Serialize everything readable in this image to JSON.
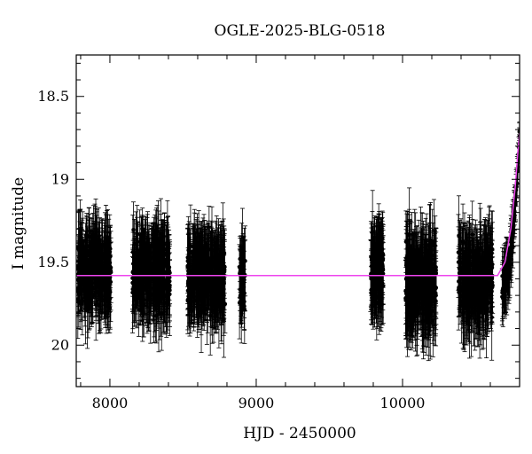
{
  "chart_data": {
    "type": "scatter",
    "title": "OGLE-2025-BLG-0518",
    "xlabel": "HJD - 2450000",
    "ylabel": "I magnitude",
    "xlim": [
      7770,
      10800
    ],
    "ylim": [
      20.25,
      18.25
    ],
    "y_inverted": true,
    "x_ticks": [
      8000,
      9000,
      10000
    ],
    "y_ticks": [
      18.5,
      19,
      19.5,
      20
    ],
    "grid": false,
    "legend": "none",
    "series": [
      {
        "kind": "photometry",
        "color": "#000000",
        "baseline_mag": 19.58,
        "seasons": [
          {
            "start": 7780,
            "end": 8010,
            "mean": 19.55,
            "scatter": 0.24,
            "err": 0.19,
            "count": 330
          },
          {
            "start": 8150,
            "end": 8410,
            "mean": 19.56,
            "scatter": 0.25,
            "err": 0.2,
            "count": 330
          },
          {
            "start": 8530,
            "end": 8790,
            "mean": 19.58,
            "scatter": 0.25,
            "err": 0.2,
            "count": 330
          },
          {
            "start": 8885,
            "end": 8925,
            "mean": 19.6,
            "scatter": 0.22,
            "err": 0.18,
            "count": 45
          },
          {
            "start": 9780,
            "end": 9870,
            "mean": 19.55,
            "scatter": 0.22,
            "err": 0.2,
            "count": 130
          },
          {
            "start": 10020,
            "end": 10230,
            "mean": 19.62,
            "scatter": 0.26,
            "err": 0.22,
            "count": 300
          },
          {
            "start": 10380,
            "end": 10620,
            "mean": 19.6,
            "scatter": 0.25,
            "err": 0.21,
            "count": 300
          }
        ],
        "rise": {
          "start": 10680,
          "end": 10800,
          "mag_start": 19.65,
          "mag_end": 18.72,
          "count": 90
        }
      },
      {
        "kind": "model",
        "color": "#ee44ee",
        "points": [
          {
            "x": 7770,
            "y": 19.58
          },
          {
            "x": 10650,
            "y": 19.58
          },
          {
            "x": 10700,
            "y": 19.5
          },
          {
            "x": 10740,
            "y": 19.3
          },
          {
            "x": 10770,
            "y": 19.05
          },
          {
            "x": 10790,
            "y": 18.82
          },
          {
            "x": 10800,
            "y": 18.72
          }
        ]
      }
    ]
  }
}
